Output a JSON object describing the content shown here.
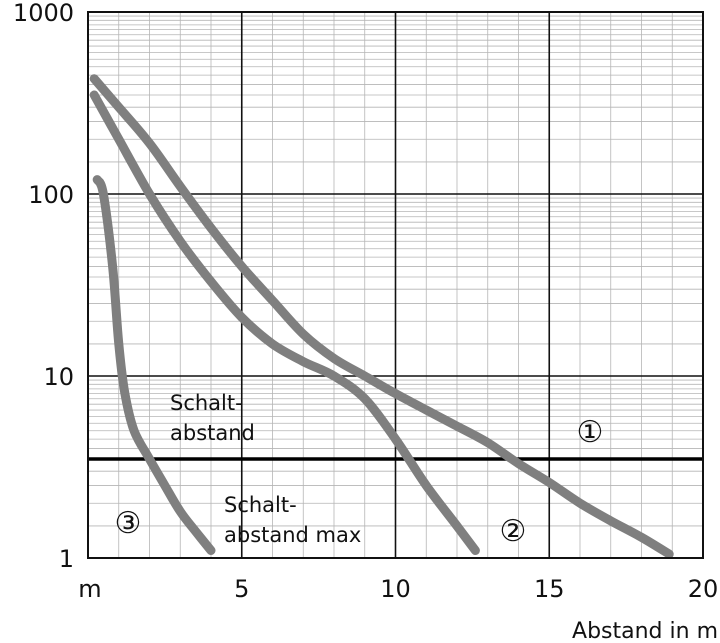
{
  "chart_data": {
    "type": "line",
    "title": "",
    "xlabel": "Abstand in m",
    "ylabel": "",
    "x_scale": "linear",
    "y_scale": "log",
    "xlim": [
      0,
      20
    ],
    "ylim": [
      1,
      1000
    ],
    "x_ticks": [
      {
        "value": 0,
        "label": "m"
      },
      {
        "value": 5,
        "label": "5"
      },
      {
        "value": 10,
        "label": "10"
      },
      {
        "value": 15,
        "label": "15"
      },
      {
        "value": 20,
        "label": "20"
      }
    ],
    "y_ticks": [
      {
        "value": 1,
        "label": "1"
      },
      {
        "value": 10,
        "label": "10"
      },
      {
        "value": 100,
        "label": "100"
      },
      {
        "value": 1000,
        "label": "1000"
      }
    ],
    "grid": true,
    "series": [
      {
        "marker": "①",
        "color": "#7f7f7f",
        "points": [
          [
            0.2,
            430
          ],
          [
            1,
            300
          ],
          [
            2,
            190
          ],
          [
            3,
            110
          ],
          [
            4,
            65
          ],
          [
            5,
            40
          ],
          [
            6,
            26
          ],
          [
            7,
            17
          ],
          [
            8,
            12.5
          ],
          [
            9,
            10
          ],
          [
            10,
            8
          ],
          [
            11,
            6.5
          ],
          [
            12,
            5.3
          ],
          [
            13,
            4.3
          ],
          [
            14,
            3.3
          ],
          [
            15,
            2.6
          ],
          [
            16,
            2.0
          ],
          [
            17,
            1.6
          ],
          [
            18,
            1.3
          ],
          [
            18.9,
            1.05
          ]
        ]
      },
      {
        "marker": "②",
        "color": "#7f7f7f",
        "points": [
          [
            0.2,
            350
          ],
          [
            1,
            200
          ],
          [
            2,
            100
          ],
          [
            3,
            55
          ],
          [
            4,
            33
          ],
          [
            5,
            21
          ],
          [
            6,
            15
          ],
          [
            7,
            12
          ],
          [
            8,
            10
          ],
          [
            9,
            7.5
          ],
          [
            10,
            4.5
          ],
          [
            11,
            2.5
          ],
          [
            12,
            1.5
          ],
          [
            12.6,
            1.1
          ]
        ]
      },
      {
        "marker": "③",
        "color": "#7f7f7f",
        "points": [
          [
            0.3,
            120
          ],
          [
            0.5,
            100
          ],
          [
            0.8,
            40
          ],
          [
            1.0,
            15
          ],
          [
            1.2,
            8
          ],
          [
            1.5,
            5
          ],
          [
            2.0,
            3.5
          ],
          [
            2.5,
            2.5
          ],
          [
            3.0,
            1.8
          ],
          [
            3.5,
            1.4
          ],
          [
            4.0,
            1.1
          ]
        ]
      }
    ],
    "reference_lines": [
      {
        "y": 3.5,
        "color": "#000000"
      }
    ],
    "annotations": [
      {
        "text_lines": [
          "Schalt-",
          "abstand"
        ]
      },
      {
        "text_lines": [
          "Schalt-",
          "abstand max"
        ]
      }
    ]
  }
}
